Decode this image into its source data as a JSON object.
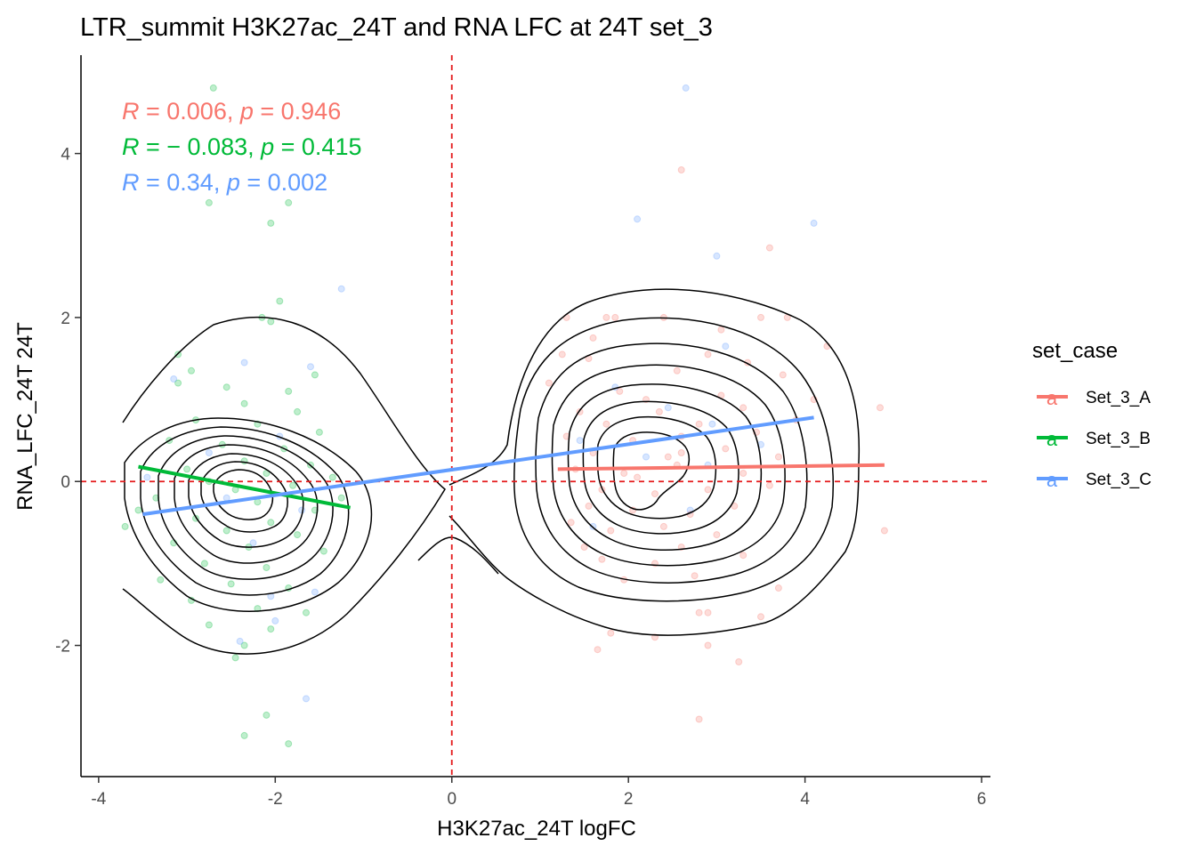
{
  "chart_data": {
    "type": "scatter",
    "title": "LTR_summit H3K27ac_24T and RNA LFC at 24T set_3",
    "xlabel": "H3K27ac_24T logFC",
    "ylabel": "RNA_LFC_24T 24T",
    "xlim": [
      -4.2,
      6.1
    ],
    "ylim": [
      -3.6,
      5.2
    ],
    "x_ticks": [
      -4,
      -2,
      0,
      2,
      4,
      6
    ],
    "y_ticks": [
      -2,
      0,
      2,
      4
    ],
    "x_tick_labels": [
      "-4",
      "-2",
      "0",
      "2",
      "4",
      "6"
    ],
    "y_tick_labels": [
      "-2",
      "0",
      "2",
      "4"
    ],
    "grid": false,
    "reference_lines": {
      "x": 0,
      "y": 0,
      "color": "#e41a1c",
      "style": "dashed"
    },
    "legend": {
      "title": "set_case",
      "placement": "right",
      "key_glyph": "a",
      "entries": [
        "Set_3_A",
        "Set_3_B",
        "Set_3_C"
      ]
    },
    "series": [
      {
        "name": "Set_3_A",
        "color": "#F8766D",
        "regression": {
          "x": [
            1.2,
            4.9
          ],
          "y": [
            0.15,
            0.2
          ]
        },
        "stat": {
          "r_label": "R",
          "r_value": "0.006",
          "p_label": "p",
          "p_value": "0.946"
        },
        "points": [
          [
            2.6,
            3.8
          ],
          [
            3.6,
            2.85
          ],
          [
            1.3,
            2.0
          ],
          [
            1.75,
            2.0
          ],
          [
            1.85,
            2.0
          ],
          [
            2.4,
            2.0
          ],
          [
            3.5,
            2.0
          ],
          [
            3.8,
            2.0
          ],
          [
            1.6,
            1.75
          ],
          [
            3.05,
            1.85
          ],
          [
            4.25,
            1.65
          ],
          [
            1.25,
            1.55
          ],
          [
            1.55,
            1.5
          ],
          [
            2.9,
            1.55
          ],
          [
            3.35,
            1.45
          ],
          [
            1.1,
            1.2
          ],
          [
            2.55,
            1.35
          ],
          [
            3.75,
            1.3
          ],
          [
            1.9,
            1.1
          ],
          [
            2.2,
            1.0
          ],
          [
            3.05,
            1.05
          ],
          [
            4.1,
            1.0
          ],
          [
            4.85,
            0.9
          ],
          [
            1.45,
            0.85
          ],
          [
            2.35,
            0.85
          ],
          [
            3.3,
            0.9
          ],
          [
            1.75,
            0.7
          ],
          [
            2.8,
            0.7
          ],
          [
            3.9,
            0.75
          ],
          [
            1.3,
            0.55
          ],
          [
            2.05,
            0.5
          ],
          [
            2.6,
            0.55
          ],
          [
            3.45,
            0.6
          ],
          [
            1.6,
            0.35
          ],
          [
            2.45,
            0.3
          ],
          [
            3.1,
            0.4
          ],
          [
            2.6,
            0.35
          ],
          [
            3.7,
            0.3
          ],
          [
            1.4,
            0.15
          ],
          [
            1.95,
            0.1
          ],
          [
            2.55,
            0.2
          ],
          [
            2.1,
            0.05
          ],
          [
            3.3,
            0.1
          ],
          [
            1.7,
            -0.1
          ],
          [
            2.3,
            -0.15
          ],
          [
            2.9,
            -0.1
          ],
          [
            3.6,
            -0.05
          ],
          [
            1.55,
            -0.3
          ],
          [
            2.05,
            -0.35
          ],
          [
            2.7,
            -0.4
          ],
          [
            3.2,
            -0.3
          ],
          [
            1.35,
            -0.5
          ],
          [
            2.4,
            -0.55
          ],
          [
            1.8,
            -0.6
          ],
          [
            3.0,
            -0.65
          ],
          [
            4.9,
            -0.6
          ],
          [
            1.5,
            -0.8
          ],
          [
            2.6,
            -0.8
          ],
          [
            1.7,
            -0.95
          ],
          [
            2.3,
            -1.0
          ],
          [
            3.3,
            -0.9
          ],
          [
            1.95,
            -1.2
          ],
          [
            2.75,
            -1.15
          ],
          [
            3.7,
            -1.3
          ],
          [
            2.8,
            -1.6
          ],
          [
            2.9,
            -1.6
          ],
          [
            3.5,
            -1.65
          ],
          [
            1.8,
            -1.85
          ],
          [
            2.3,
            -1.9
          ],
          [
            1.65,
            -2.05
          ],
          [
            2.9,
            -2.0
          ],
          [
            3.25,
            -2.2
          ],
          [
            2.8,
            -2.9
          ]
        ]
      },
      {
        "name": "Set_3_B",
        "color": "#00BA38",
        "regression": {
          "x": [
            -3.55,
            -1.15
          ],
          "y": [
            0.18,
            -0.32
          ]
        },
        "stat": {
          "r_label": "R",
          "r_value": "− 0.083",
          "p_label": "p",
          "p_value": "0.415"
        },
        "points": [
          [
            -2.7,
            4.8
          ],
          [
            -2.75,
            3.4
          ],
          [
            -1.85,
            3.4
          ],
          [
            -2.05,
            3.15
          ],
          [
            -1.95,
            2.2
          ],
          [
            -2.15,
            2.0
          ],
          [
            -2.05,
            1.95
          ],
          [
            -3.1,
            1.55
          ],
          [
            -2.95,
            1.35
          ],
          [
            -1.55,
            1.3
          ],
          [
            -3.1,
            1.2
          ],
          [
            -2.55,
            1.15
          ],
          [
            -1.85,
            1.1
          ],
          [
            -2.35,
            0.95
          ],
          [
            -1.75,
            0.85
          ],
          [
            -2.9,
            0.75
          ],
          [
            -2.2,
            0.7
          ],
          [
            -1.5,
            0.6
          ],
          [
            -3.2,
            0.5
          ],
          [
            -2.6,
            0.45
          ],
          [
            -1.9,
            0.4
          ],
          [
            -2.35,
            0.25
          ],
          [
            -1.6,
            0.2
          ],
          [
            -3.0,
            0.15
          ],
          [
            -2.1,
            0.1
          ],
          [
            -1.35,
            0.05
          ],
          [
            -2.75,
            0.0
          ],
          [
            -2.45,
            -0.1
          ],
          [
            -1.8,
            -0.05
          ],
          [
            -3.35,
            -0.2
          ],
          [
            -2.2,
            -0.25
          ],
          [
            -1.55,
            -0.35
          ],
          [
            -2.9,
            -0.45
          ],
          [
            -2.05,
            -0.5
          ],
          [
            -2.55,
            -0.6
          ],
          [
            -1.75,
            -0.65
          ],
          [
            -3.15,
            -0.75
          ],
          [
            -2.3,
            -0.8
          ],
          [
            -1.45,
            -0.85
          ],
          [
            -2.8,
            -1.0
          ],
          [
            -2.1,
            -1.05
          ],
          [
            -3.3,
            -1.2
          ],
          [
            -2.5,
            -1.25
          ],
          [
            -1.85,
            -1.3
          ],
          [
            -2.95,
            -1.45
          ],
          [
            -2.2,
            -1.55
          ],
          [
            -1.65,
            -1.6
          ],
          [
            -2.75,
            -1.75
          ],
          [
            -2.05,
            -1.8
          ],
          [
            -2.35,
            -2.0
          ],
          [
            -2.45,
            -2.15
          ],
          [
            -2.1,
            -2.85
          ],
          [
            -2.35,
            -3.1
          ],
          [
            -1.85,
            -3.2
          ],
          [
            -3.7,
            -0.55
          ],
          [
            -3.55,
            -0.35
          ],
          [
            -1.25,
            -0.2
          ]
        ]
      },
      {
        "name": "Set_3_C",
        "color": "#619CFF",
        "regression": {
          "x": [
            -3.5,
            4.1
          ],
          "y": [
            -0.4,
            0.78
          ]
        },
        "stat": {
          "r_label": "R",
          "r_value": "0.34",
          "p_label": "p",
          "p_value": "0.002"
        },
        "points": [
          [
            2.65,
            4.8
          ],
          [
            2.1,
            3.2
          ],
          [
            4.1,
            3.15
          ],
          [
            3.0,
            2.75
          ],
          [
            -1.25,
            2.35
          ],
          [
            -3.15,
            1.25
          ],
          [
            -2.35,
            1.45
          ],
          [
            -1.6,
            1.4
          ],
          [
            3.1,
            1.65
          ],
          [
            1.85,
            1.15
          ],
          [
            2.45,
            0.9
          ],
          [
            2.95,
            0.7
          ],
          [
            1.45,
            0.5
          ],
          [
            3.5,
            0.45
          ],
          [
            2.2,
            0.3
          ],
          [
            2.9,
            0.2
          ],
          [
            -2.75,
            0.35
          ],
          [
            -1.95,
            0.55
          ],
          [
            -3.45,
            0.05
          ],
          [
            -2.55,
            -0.2
          ],
          [
            -1.7,
            -0.35
          ],
          [
            -2.25,
            -0.75
          ],
          [
            -2.05,
            -1.4
          ],
          [
            -1.55,
            -1.35
          ],
          [
            -2.4,
            -1.95
          ],
          [
            -2.0,
            -1.7
          ],
          [
            -1.65,
            -2.65
          ],
          [
            1.6,
            -0.55
          ],
          [
            2.7,
            -0.35
          ]
        ]
      }
    ],
    "density_contour": {
      "color": "#000000",
      "levels": 8
    }
  }
}
